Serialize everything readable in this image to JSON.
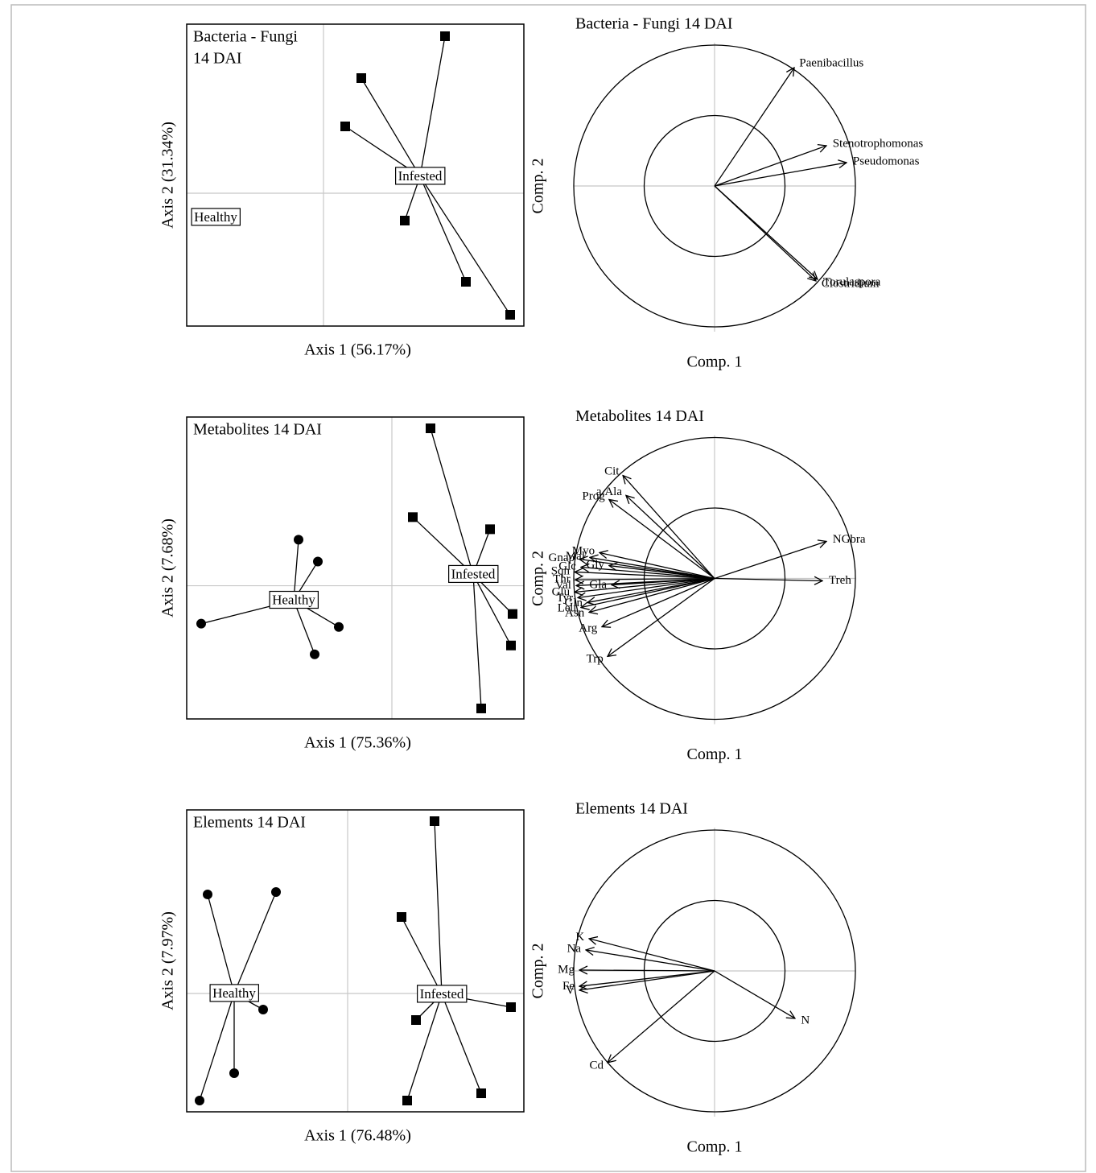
{
  "chart_data": [
    {
      "type": "scatter",
      "title": [
        "Bacteria - Fungi",
        "14 DAI"
      ],
      "xlabel": "Axis 1 (56.17%)",
      "ylabel": "Axis 2 (31.34%)",
      "xlim": [
        -1.7,
        2.49
      ],
      "ylim": [
        -1.65,
        2.1
      ],
      "series": [
        {
          "name": "Healthy",
          "marker": "circle",
          "color": "#000000",
          "x": [],
          "y": [],
          "centroid_x": -1.34,
          "centroid_y": -0.3
        },
        {
          "name": "Infested",
          "marker": "square",
          "color": "#000000",
          "x": [
            1.51,
            0.47,
            0.27,
            1.01,
            1.77,
            2.32
          ],
          "y": [
            1.95,
            1.43,
            0.83,
            -0.34,
            -1.1,
            -1.51
          ],
          "centroid_x": 1.2,
          "centroid_y": 0.21
        }
      ]
    },
    {
      "type": "circle",
      "title": "Bacteria - Fungi 14 DAI",
      "xlabel": "Comp. 1",
      "ylabel": "Comp. 2",
      "xlim": [
        -1,
        1
      ],
      "ylim": [
        -1,
        1
      ],
      "circle_radii": [
        1,
        0.5
      ],
      "arrows": {
        "labels": [
          "Paenibacillus",
          "Stenotrophomonas",
          "Pseudomonas",
          "Torulaspora",
          "Clostridium"
        ],
        "x": [
          0.566,
          0.794,
          0.937,
          0.731,
          0.72
        ],
        "y": [
          0.84,
          0.286,
          0.166,
          -0.663,
          -0.674
        ]
      }
    },
    {
      "type": "scatter",
      "title": [
        "Metabolites 14 DAI"
      ],
      "xlabel": "Axis 1 (75.36%)",
      "ylabel": "Axis 2 (7.68%)",
      "xlim": [
        -2.55,
        1.64
      ],
      "ylim": [
        -1.65,
        2.09
      ],
      "series": [
        {
          "name": "Healthy",
          "marker": "circle",
          "color": "#000000",
          "x": [
            -1.16,
            -0.92,
            -2.37,
            -0.66,
            -0.96
          ],
          "y": [
            0.57,
            0.3,
            -0.47,
            -0.51,
            -0.85
          ],
          "centroid_x": -1.22,
          "centroid_y": -0.18
        },
        {
          "name": "Infested",
          "marker": "square",
          "color": "#000000",
          "x": [
            0.48,
            0.26,
            1.22,
            1.5,
            1.48,
            1.11
          ],
          "y": [
            1.95,
            0.85,
            0.7,
            -0.35,
            -0.74,
            -1.52
          ],
          "centroid_x": 1.01,
          "centroid_y": 0.14
        }
      ]
    },
    {
      "type": "circle",
      "title": "Metabolites 14 DAI",
      "xlabel": "Comp. 1",
      "ylabel": "Comp. 2",
      "xlim": [
        -1,
        1
      ],
      "ylim": [
        -1,
        1
      ],
      "circle_radii": [
        1,
        0.5
      ],
      "arrows": {
        "labels": [
          "Cit",
          "a.Ala",
          "Prog",
          "Myo",
          "Mal",
          "Gnap",
          "Gly",
          "Glc",
          "Sqn",
          "Thr",
          "Val",
          "Glu",
          "Gla",
          "Tyr",
          "Gln",
          "Leu",
          "Asn",
          "Arg",
          "Trp",
          "NGbra",
          "Treh"
        ],
        "x": [
          -0.651,
          -0.629,
          -0.749,
          -0.817,
          -0.886,
          -0.96,
          -0.749,
          -0.949,
          -0.994,
          -0.99,
          -0.983,
          -0.994,
          -0.731,
          -0.971,
          -0.903,
          -0.949,
          -0.891,
          -0.8,
          -0.76,
          0.794,
          0.766
        ],
        "y": [
          0.731,
          0.589,
          0.56,
          0.183,
          0.149,
          0.137,
          0.091,
          0.08,
          0.046,
          -0.01,
          -0.051,
          -0.097,
          -0.046,
          -0.137,
          -0.171,
          -0.206,
          -0.24,
          -0.343,
          -0.554,
          0.263,
          -0.017
        ]
      }
    },
    {
      "type": "scatter",
      "title": [
        "Elements 14 DAI"
      ],
      "xlabel": "Axis 1 (76.48%)",
      "ylabel": "Axis 2 (7.97%)",
      "xlim": [
        -2.0,
        2.19
      ],
      "ylim": [
        -1.47,
        2.28
      ],
      "series": [
        {
          "name": "Healthy",
          "marker": "circle",
          "color": "#000000",
          "x": [
            -1.74,
            -0.89,
            -1.05,
            -1.41,
            -1.84
          ],
          "y": [
            1.23,
            1.26,
            -0.2,
            -0.99,
            -1.33
          ],
          "centroid_x": -1.41,
          "centroid_y": 0.0
        },
        {
          "name": "Infested",
          "marker": "square",
          "color": "#000000",
          "x": [
            1.08,
            0.67,
            2.03,
            0.85,
            1.66,
            0.74
          ],
          "y": [
            2.14,
            0.95,
            -0.17,
            -0.33,
            -1.24,
            -1.33
          ],
          "centroid_x": 1.17,
          "centroid_y": -0.01
        }
      ]
    },
    {
      "type": "circle",
      "title": "Elements 14 DAI",
      "xlabel": "Comp. 1",
      "ylabel": "Comp. 2",
      "xlim": [
        -1,
        1
      ],
      "ylim": [
        -1,
        1
      ],
      "circle_radii": [
        1,
        0.5
      ],
      "arrows": {
        "labels": [
          "K",
          "Na",
          "Mg",
          "Fe",
          "V",
          "N",
          "Cd"
        ],
        "x": [
          -0.891,
          -0.914,
          -0.96,
          -0.96,
          -0.96,
          0.571,
          -0.76
        ],
        "y": [
          0.229,
          0.149,
          0.006,
          -0.109,
          -0.137,
          -0.337,
          -0.651
        ]
      }
    }
  ]
}
